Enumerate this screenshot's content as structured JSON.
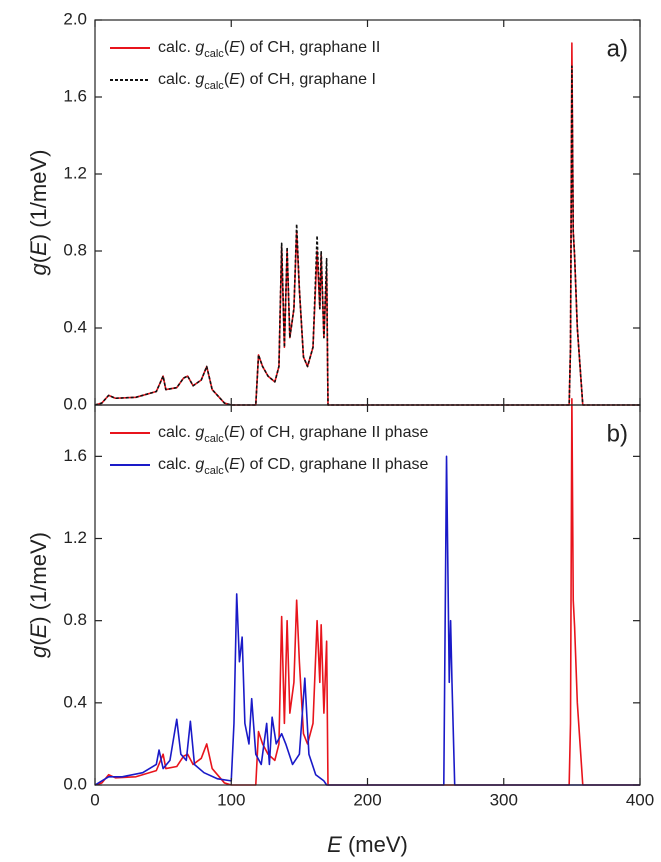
{
  "chart_data": [
    {
      "type": "line",
      "panel_label": "a)",
      "ylabel": "g(E) (1/meV)",
      "xlim": [
        0,
        400
      ],
      "xticks": [
        0,
        100,
        200,
        300,
        400
      ],
      "ylim": [
        0,
        2.0
      ],
      "yticks": [
        {
          "value": 0,
          "label": "0.0"
        },
        {
          "value": 0.4,
          "label": "0.4"
        },
        {
          "value": 0.8,
          "label": "0.8"
        },
        {
          "value": 1.2,
          "label": "1.2"
        },
        {
          "value": 1.6,
          "label": "1.6"
        },
        {
          "value": 2.0,
          "label": "2.0"
        }
      ],
      "legend": "upper left",
      "series": [
        {
          "name": "calc. gcalc(E) of CH, graphane II",
          "color": "#e8141c",
          "linestyle": "solid",
          "x": [
            0,
            5,
            10,
            15,
            30,
            45,
            50,
            52,
            60,
            65,
            68,
            72,
            78,
            82,
            86,
            95,
            100,
            118,
            120,
            123,
            127,
            132,
            135,
            137,
            139,
            141,
            143,
            146,
            148,
            150,
            153,
            156,
            160,
            163,
            165,
            166,
            168,
            170,
            171,
            348,
            349,
            350,
            351,
            352,
            354,
            358,
            400
          ],
          "values": [
            0,
            0.01,
            0.05,
            0.035,
            0.04,
            0.07,
            0.15,
            0.08,
            0.09,
            0.14,
            0.15,
            0.1,
            0.13,
            0.2,
            0.08,
            0.01,
            0,
            0,
            0.26,
            0.2,
            0.15,
            0.12,
            0.2,
            0.82,
            0.3,
            0.8,
            0.35,
            0.5,
            0.9,
            0.6,
            0.25,
            0.2,
            0.3,
            0.8,
            0.5,
            0.78,
            0.35,
            0.7,
            0,
            0,
            0.3,
            1.88,
            0.9,
            0.77,
            0.4,
            0,
            0
          ]
        },
        {
          "name": "calc. gcalc(E) of CH, graphane I",
          "color": "#111111",
          "linestyle": "dashed",
          "x": [
            0,
            5,
            10,
            15,
            30,
            45,
            50,
            52,
            60,
            65,
            68,
            72,
            78,
            82,
            86,
            95,
            100,
            118,
            120,
            123,
            127,
            132,
            135,
            137,
            139,
            141,
            143,
            146,
            148,
            150,
            153,
            156,
            160,
            163,
            165,
            166,
            168,
            170,
            171,
            348,
            349,
            350,
            351,
            352,
            354,
            358,
            400
          ],
          "values": [
            0,
            0.01,
            0.05,
            0.035,
            0.04,
            0.07,
            0.15,
            0.08,
            0.09,
            0.14,
            0.15,
            0.1,
            0.13,
            0.2,
            0.08,
            0.01,
            0,
            0,
            0.26,
            0.2,
            0.15,
            0.12,
            0.2,
            0.84,
            0.3,
            0.82,
            0.35,
            0.5,
            0.94,
            0.6,
            0.25,
            0.2,
            0.3,
            0.88,
            0.5,
            0.8,
            0.35,
            0.76,
            0,
            0,
            0.3,
            1.76,
            0.9,
            0.78,
            0.4,
            0,
            0
          ]
        }
      ]
    },
    {
      "type": "line",
      "panel_label": "b)",
      "ylabel": "g(E) (1/meV)",
      "xlabel": "E (meV)",
      "xlim": [
        0,
        400
      ],
      "xticks": [
        0,
        100,
        200,
        300,
        400
      ],
      "ylim": [
        0,
        1.85
      ],
      "yticks": [
        {
          "value": 0,
          "label": "0.0"
        },
        {
          "value": 0.4,
          "label": "0.4"
        },
        {
          "value": 0.8,
          "label": "0.8"
        },
        {
          "value": 1.2,
          "label": "1.2"
        },
        {
          "value": 1.6,
          "label": "1.6"
        }
      ],
      "legend": "upper left",
      "series": [
        {
          "name": "calc. gcalc(E) of CH, graphane II phase",
          "color": "#e8141c",
          "linestyle": "solid",
          "x": [
            0,
            5,
            10,
            15,
            30,
            45,
            50,
            52,
            60,
            65,
            68,
            72,
            78,
            82,
            86,
            95,
            100,
            118,
            120,
            123,
            127,
            132,
            135,
            137,
            139,
            141,
            143,
            146,
            148,
            150,
            153,
            156,
            160,
            163,
            165,
            166,
            168,
            170,
            171,
            348,
            349,
            350,
            351,
            352,
            354,
            358,
            400
          ],
          "values": [
            0,
            0.01,
            0.05,
            0.035,
            0.04,
            0.07,
            0.15,
            0.08,
            0.09,
            0.14,
            0.15,
            0.1,
            0.13,
            0.2,
            0.08,
            0.01,
            0,
            0,
            0.26,
            0.2,
            0.15,
            0.12,
            0.2,
            0.82,
            0.3,
            0.8,
            0.35,
            0.5,
            0.9,
            0.6,
            0.25,
            0.2,
            0.3,
            0.8,
            0.5,
            0.78,
            0.35,
            0.7,
            0,
            0,
            0.3,
            1.88,
            0.9,
            0.77,
            0.4,
            0,
            0
          ]
        },
        {
          "name": "calc. gcalc(E) of CD, graphane II phase",
          "color": "#1a1ac8",
          "linestyle": "solid",
          "x": [
            0,
            10,
            20,
            35,
            45,
            47,
            50,
            55,
            60,
            63,
            67,
            70,
            73,
            80,
            90,
            100,
            102,
            104,
            106,
            108,
            110,
            113,
            115,
            118,
            122,
            126,
            128,
            130,
            133,
            137,
            140,
            145,
            150,
            154,
            157,
            162,
            168,
            170,
            256,
            258,
            260,
            261,
            262,
            264,
            400
          ],
          "values": [
            0,
            0.04,
            0.04,
            0.06,
            0.1,
            0.17,
            0.08,
            0.12,
            0.32,
            0.15,
            0.12,
            0.31,
            0.1,
            0.06,
            0.03,
            0.02,
            0.3,
            0.93,
            0.6,
            0.72,
            0.3,
            0.2,
            0.42,
            0.15,
            0.1,
            0.3,
            0.1,
            0.33,
            0.2,
            0.25,
            0.2,
            0.1,
            0.15,
            0.52,
            0.15,
            0.05,
            0.02,
            0,
            0,
            1.6,
            0.5,
            0.8,
            0.5,
            0,
            0
          ]
        }
      ]
    }
  ]
}
